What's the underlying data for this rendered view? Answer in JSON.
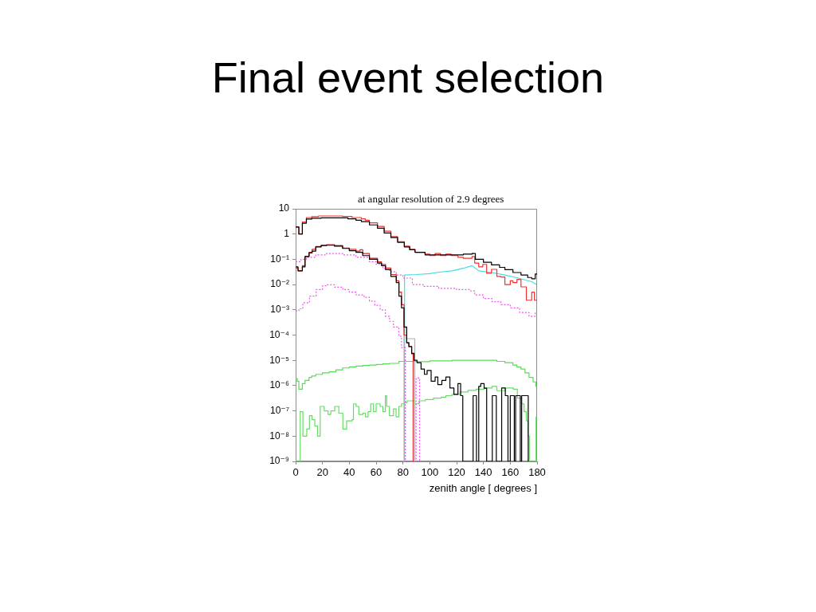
{
  "chart_data": {
    "type": "step",
    "title": "Final event selection",
    "subtitle": "at angular resolution of 2.9 degrees",
    "xlabel": "zenith angle [ degrees ]",
    "xlim": [
      0,
      180
    ],
    "xticks": [
      0,
      20,
      40,
      60,
      80,
      100,
      120,
      140,
      160,
      180
    ],
    "ylim": [
      1e-09,
      10
    ],
    "yticks": [
      {
        "value": 1e-09,
        "label": "10⁻⁹"
      },
      {
        "value": 1e-08,
        "label": "10⁻⁸"
      },
      {
        "value": 1e-07,
        "label": "10⁻⁷"
      },
      {
        "value": 1e-06,
        "label": "10⁻⁶"
      },
      {
        "value": 1e-05,
        "label": "10⁻⁵"
      },
      {
        "value": 0.0001,
        "label": "10⁻⁴"
      },
      {
        "value": 0.001,
        "label": "10⁻³"
      },
      {
        "value": 0.01,
        "label": "10⁻²"
      },
      {
        "value": 0.1,
        "label": "10⁻¹"
      },
      1,
      10
    ],
    "log": true,
    "marker": "none",
    "series": [
      {
        "color": "#000000",
        "x": [
          0,
          2.4,
          5,
          8,
          12,
          19,
          39,
          45,
          49,
          55,
          61,
          66,
          71,
          76,
          81,
          85,
          89,
          96.5,
          125,
          131.5,
          134,
          140,
          146,
          152,
          156,
          162,
          168,
          173,
          176,
          178.6,
          180
        ],
        "values": [
          1.9,
          1.0,
          2.7,
          3.9,
          4.2,
          4.4,
          4.0,
          3.5,
          3.1,
          2.3,
          1.7,
          1.1,
          0.72,
          0.47,
          0.31,
          0.24,
          0.19,
          0.15,
          0.16,
          0.17,
          0.1,
          0.076,
          0.06,
          0.048,
          0.039,
          0.03,
          0.024,
          0.019,
          0.017,
          0.026,
          0.026
        ]
      },
      {
        "color": "#ee3333",
        "x": [
          0,
          2.4,
          5,
          8,
          12,
          17,
          35,
          42,
          49,
          52,
          55,
          61,
          66,
          71,
          76,
          81,
          85,
          89,
          96.5,
          100,
          104,
          108,
          112,
          116,
          121,
          125,
          131.5,
          133.5,
          136.5,
          139.5,
          142.4,
          146,
          150,
          153,
          156,
          160,
          162,
          165,
          168,
          172,
          176,
          178,
          180
        ],
        "values": [
          1.9,
          1.0,
          3.0,
          4.5,
          4.9,
          5.2,
          5.0,
          4.5,
          4.0,
          3.5,
          2.8,
          2.0,
          1.3,
          0.79,
          0.5,
          0.33,
          0.25,
          0.19,
          0.16,
          0.14,
          0.17,
          0.14,
          0.16,
          0.14,
          0.12,
          0.11,
          0.13,
          0.071,
          0.05,
          0.063,
          0.028,
          0.04,
          0.021,
          0.02,
          0.01,
          0.014,
          0.012,
          0.016,
          0.0081,
          0.0024,
          0.005,
          0.0024,
          0.0024
        ]
      },
      {
        "color": "#000000",
        "x": [
          0,
          1.8,
          5,
          7,
          10,
          12.3,
          15,
          19,
          23,
          29,
          35,
          40,
          45,
          50,
          55,
          61,
          64,
          67,
          71,
          75,
          77,
          78.9,
          80.8,
          82.8,
          84.4,
          86.5,
          88.3,
          90.5,
          93.5,
          96,
          98,
          101,
          104,
          106,
          109,
          112,
          115,
          118,
          121,
          123,
          124.6,
          132.3,
          134.8,
          136.5,
          138,
          140.5,
          142.4,
          146.6,
          149.6,
          153.6,
          156.3,
          158.3,
          160,
          163,
          164,
          167.5,
          168.5,
          173.4
        ],
        "values": [
          0.05,
          0.035,
          0.05,
          0.13,
          0.18,
          0.21,
          0.31,
          0.35,
          0.36,
          0.33,
          0.27,
          0.22,
          0.19,
          0.14,
          0.1,
          0.071,
          0.056,
          0.039,
          0.021,
          0.012,
          0.0035,
          0.0012,
          0.00021,
          5e-05,
          3.5e-05,
          1.9e-05,
          1e-05,
          8.1e-06,
          4.5e-06,
          2.8e-06,
          4e-06,
          1.5e-06,
          2.2e-06,
          1.1e-06,
          1.6e-06,
          2.2e-06,
          8.1e-07,
          4.5e-07,
          1.2e-06,
          4e-07,
          1e-09,
          4e-07,
          1e-09,
          9.3e-07,
          1.2e-06,
          7.9e-07,
          1e-09,
          4e-07,
          1e-09,
          8e-07,
          4e-07,
          1e-09,
          4e-07,
          1e-09,
          4e-07,
          1e-09,
          4e-07,
          1e-09
        ]
      },
      {
        "color": "#dd2a2a",
        "x": [
          0,
          1.8,
          5,
          7,
          10,
          12.3,
          15,
          19,
          23,
          29,
          35,
          40,
          45,
          48,
          50,
          55,
          61,
          64,
          67,
          71,
          75,
          77,
          78.9,
          80.8,
          82.8,
          84.4,
          86.5,
          87.6
        ],
        "values": [
          0.045,
          0.035,
          0.056,
          0.13,
          0.19,
          0.25,
          0.32,
          0.36,
          0.38,
          0.35,
          0.28,
          0.25,
          0.21,
          0.24,
          0.17,
          0.11,
          0.079,
          0.063,
          0.045,
          0.025,
          0.014,
          0.005,
          0.0016,
          0.0001,
          5e-05,
          3.5e-05,
          1.8e-05,
          1e-09
        ]
      },
      {
        "color": "#ee55ee",
        "line_style": "dotted",
        "x": [
          0,
          4,
          8,
          15,
          23,
          35,
          45,
          55,
          60,
          65,
          70,
          75,
          80,
          87,
          95,
          106.7,
          120,
          130.5,
          133.5,
          140,
          146.4,
          153,
          160,
          167,
          174,
          178.6,
          180
        ],
        "values": [
          0.081,
          0.1,
          0.12,
          0.15,
          0.17,
          0.15,
          0.12,
          0.081,
          0.063,
          0.044,
          0.032,
          0.024,
          0.018,
          0.01,
          0.0085,
          0.0071,
          0.0063,
          0.0056,
          0.0039,
          0.0028,
          0.0021,
          0.0016,
          0.0012,
          0.00079,
          0.00056,
          0.00081,
          0.00081
        ]
      },
      {
        "color": "#ee55ee",
        "line_style": "dotted",
        "x": [
          0,
          2.4,
          5.4,
          10.3,
          15.3,
          20,
          23.2,
          29,
          35.2,
          40,
          45.1,
          51.1,
          55,
          59,
          63,
          66.9,
          70,
          72.9,
          76.9,
          78.9,
          81.8,
          89.8,
          92.4
        ],
        "values": [
          0.00091,
          0.0011,
          0.0019,
          0.0035,
          0.0063,
          0.0089,
          0.0098,
          0.0079,
          0.0063,
          0.005,
          0.0039,
          0.0031,
          0.0022,
          0.0015,
          0.001,
          0.00056,
          0.00035,
          0.00021,
          9.1e-05,
          3.2e-05,
          1e-09,
          2e-06,
          1e-09
        ]
      },
      {
        "type": "line",
        "color": "#44dddd",
        "x": [
          81.2,
          81.2,
          90,
          100,
          106.7,
          116.6,
          125,
          131.5,
          136.5,
          146,
          156,
          166,
          176,
          179.5
        ],
        "values": [
          1e-09,
          0.024,
          0.025,
          0.027,
          0.031,
          0.035,
          0.044,
          0.056,
          0.035,
          0.03,
          0.024,
          0.018,
          0.013,
          0.01
        ]
      },
      {
        "color": "#55dd55",
        "x": [
          0,
          1.2,
          2.4,
          5,
          7,
          10,
          12,
          15,
          20,
          25,
          30,
          35,
          40,
          45,
          50,
          55,
          60,
          65,
          70,
          77,
          90,
          100,
          116.6,
          136.5,
          150,
          156,
          162,
          165,
          168,
          171,
          174,
          177,
          179,
          180
        ],
        "values": [
          1.9e-06,
          1.5e-06,
          7.2e-07,
          1.2e-06,
          1.6e-06,
          2.1e-06,
          2.4e-06,
          2.8e-06,
          3.2e-06,
          3.5e-06,
          4.2e-06,
          5e-06,
          5.5e-06,
          5.9e-06,
          6.3e-06,
          6.5e-06,
          6.9e-06,
          7.2e-06,
          7.6e-06,
          9.1e-06,
          8.9e-06,
          9.5e-06,
          1e-05,
          1e-05,
          9.1e-06,
          8.1e-06,
          6.5e-06,
          5.4e-06,
          4.5e-06,
          3.2e-06,
          2.1e-06,
          1.4e-06,
          9.3e-07,
          9.3e-07
        ]
      },
      {
        "color": "#66dd66",
        "x": [
          0,
          3.4,
          5.4,
          8.3,
          10.3,
          12.3,
          14.3,
          16.3,
          18.3,
          21.3,
          24.2,
          26.2,
          29.2,
          32.2,
          35.2,
          38,
          42.1,
          43.1,
          45.1,
          47.1,
          50.1,
          52,
          54,
          56,
          58,
          60,
          63,
          65,
          66.9,
          67.9,
          69.9,
          72.9,
          74.9,
          76.9,
          78.9,
          80.9,
          83,
          88.8,
          92,
          96.7,
          102.7,
          108.6,
          112,
          116.6,
          122.6,
          128.5,
          134.5,
          140.5,
          146.4,
          150,
          156.3,
          162.3,
          165.3,
          168.3,
          170.3,
          172,
          173.2,
          174.2,
          179.2,
          180
        ],
        "values": [
          1e-09,
          9.3e-08,
          1e-08,
          1.9e-08,
          6.5e-08,
          4.5e-08,
          2.5e-08,
          1e-08,
          1.5e-07,
          1e-07,
          7.2e-08,
          1e-07,
          1.5e-07,
          8.1e-08,
          1.9e-08,
          4e-08,
          4.5e-08,
          1.9e-07,
          1.5e-07,
          7.2e-08,
          8.1e-08,
          5.8e-08,
          9.3e-08,
          1.9e-07,
          9.3e-08,
          1.9e-07,
          1.5e-07,
          9.3e-08,
          4e-07,
          1.5e-07,
          6.5e-08,
          1.2e-07,
          5.8e-08,
          1.5e-07,
          1.9e-07,
          2.1e-07,
          2.5e-07,
          1.9e-07,
          2.5e-07,
          2.8e-07,
          3.2e-07,
          3.5e-07,
          4e-07,
          4.5e-07,
          5.6e-07,
          6.5e-07,
          7.2e-07,
          8.1e-07,
          9.3e-07,
          6.3e-07,
          8.1e-07,
          7.2e-07,
          3.2e-07,
          1.9e-07,
          9.3e-08,
          4e-08,
          1e-08,
          1e-09,
          5.8e-08,
          5.8e-08
        ]
      },
      {
        "color": "#b0b0b0",
        "x": [
          79.5,
          80.8,
          82.8,
          88.8
        ],
        "values": [
          1e-09,
          0.0002,
          7.2e-05,
          1e-09
        ]
      }
    ]
  }
}
